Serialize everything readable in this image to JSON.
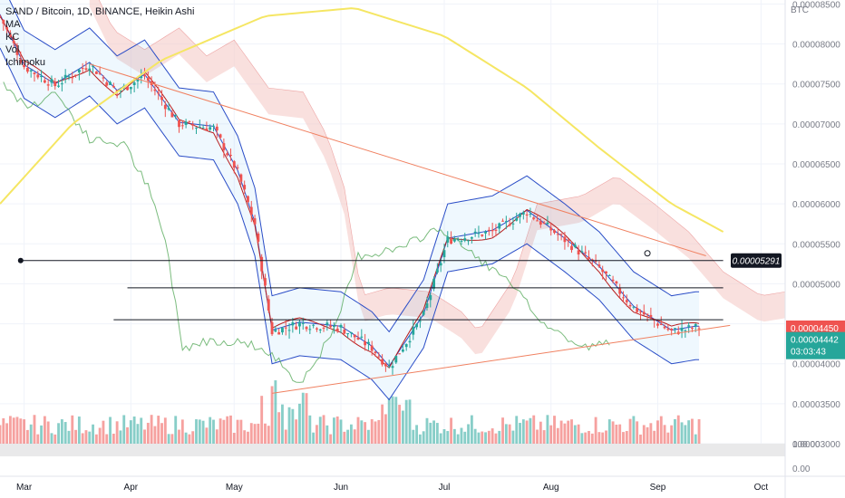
{
  "header": {
    "title": "SAND / Bitcoin, 1D, BINANCE, Heikin Ashi",
    "indicators": [
      "MA",
      "KC",
      "Vol",
      "Ichimoku"
    ]
  },
  "axis": {
    "currency": "BTC",
    "price_ticks": [
      "0.00008500",
      "0.00008000",
      "0.00007500",
      "0.00007000",
      "0.00006500",
      "0.00006000",
      "0.00005500",
      "0.00005000",
      "0.00004500",
      "0.00004000",
      "0.00003500",
      "0.00003000"
    ],
    "pane_ticks": [
      "100.00",
      "0.00"
    ],
    "time_ticks": [
      "Mar",
      "Apr",
      "May",
      "Jun",
      "Jul",
      "Aug",
      "Sep",
      "Oct"
    ]
  },
  "tags": {
    "marker_value": "0.00005291",
    "current_high": "0.00004450",
    "current_price": "0.00004442",
    "countdown": "03:03:43"
  },
  "colors": {
    "up": "#26a69a",
    "down": "#ef5350",
    "ma": "#f5e663",
    "keltner": "#2a4dc7",
    "cloud_bear": "#f4c7c3",
    "cloud_bull": "#c8e6c9",
    "lagging": "#43a047",
    "base": "#b71c1c",
    "trend": "#f08060"
  },
  "chart_data": {
    "type": "candlestick",
    "title": "SAND / Bitcoin, 1D, BINANCE, Heikin Ashi",
    "y_unit": "BTC",
    "ylim": [
      3e-05,
      8.55e-05
    ],
    "x_range": [
      "2022-02-22",
      "2022-10-08"
    ],
    "close_path": [
      [
        "2022-02-22",
        8.35e-05
      ],
      [
        "2022-03-01",
        7.72e-05
      ],
      [
        "2022-03-10",
        7.48e-05
      ],
      [
        "2022-03-20",
        7.75e-05
      ],
      [
        "2022-03-28",
        7.4e-05
      ],
      [
        "2022-04-05",
        7.6e-05
      ],
      [
        "2022-04-15",
        7e-05
      ],
      [
        "2022-04-25",
        6.95e-05
      ],
      [
        "2022-05-02",
        6.4e-05
      ],
      [
        "2022-05-07",
        5.75e-05
      ],
      [
        "2022-05-12",
        4.4e-05
      ],
      [
        "2022-05-20",
        4.5e-05
      ],
      [
        "2022-06-01",
        4.45e-05
      ],
      [
        "2022-06-10",
        4.2e-05
      ],
      [
        "2022-06-15",
        3.95e-05
      ],
      [
        "2022-06-25",
        4.6e-05
      ],
      [
        "2022-07-02",
        5.55e-05
      ],
      [
        "2022-07-15",
        5.65e-05
      ],
      [
        "2022-07-25",
        5.9e-05
      ],
      [
        "2022-08-05",
        5.55e-05
      ],
      [
        "2022-08-15",
        5.2e-05
      ],
      [
        "2022-08-25",
        4.7e-05
      ],
      [
        "2022-09-05",
        4.4e-05
      ],
      [
        "2022-09-12",
        4.45e-05
      ]
    ],
    "moving_average": [
      [
        "2022-02-22",
        6e-05
      ],
      [
        "2022-03-15",
        7e-05
      ],
      [
        "2022-04-10",
        7.8e-05
      ],
      [
        "2022-05-10",
        8.35e-05
      ],
      [
        "2022-06-05",
        8.45e-05
      ],
      [
        "2022-07-01",
        8.1e-05
      ],
      [
        "2022-07-25",
        7.45e-05
      ],
      [
        "2022-08-15",
        6.7e-05
      ],
      [
        "2022-09-05",
        6e-05
      ],
      [
        "2022-09-20",
        5.65e-05
      ]
    ],
    "horizontal_levels": [
      5.291e-05,
      4.95e-05,
      4.55e-05
    ],
    "last_high": 4.45e-05,
    "last_close": 4.442e-05,
    "lower_pane_ticks": [
      100,
      0
    ]
  }
}
